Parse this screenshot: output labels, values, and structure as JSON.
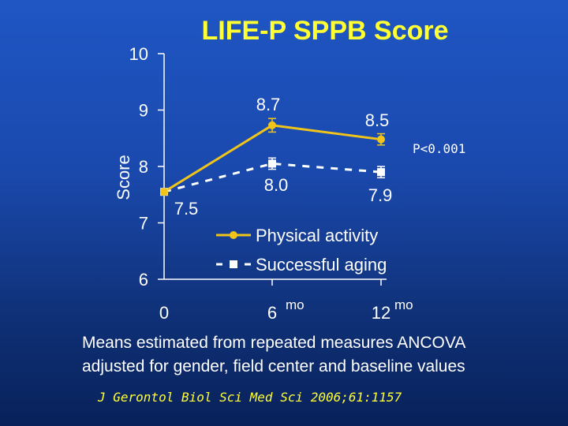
{
  "slide": {
    "title": "LIFE-P SPPB Score",
    "note_line1": "Means estimated from repeated measures ANCOVA",
    "note_line2": "adjusted for gender, field center and baseline values",
    "citation": "J Gerontol Biol Sci Med Sci 2006;61:1157"
  },
  "colors": {
    "background_top": "#1f56c4",
    "background_bottom": "#08215a",
    "title": "#ffff33",
    "physical_activity": "#f0c419",
    "successful_aging": "#ffffff",
    "axis": "#ffffff"
  },
  "chart_data": {
    "type": "line",
    "title": "LIFE-P SPPB Score",
    "xlabel": "",
    "ylabel": "Score",
    "x": [
      0,
      6,
      12
    ],
    "x_tick_labels": [
      "0",
      "6",
      "12"
    ],
    "x_unit_labels": [
      "",
      "mo",
      "mo"
    ],
    "y_ticks": [
      "6",
      "7",
      "8",
      "9",
      "10"
    ],
    "ylim": [
      6,
      10
    ],
    "annotation": "P<0.001",
    "legend_position": "center-right",
    "series": [
      {
        "name": "Physical activity",
        "values": [
          7.5,
          8.7,
          8.5
        ],
        "plotted_values": [
          7.55,
          8.73,
          8.48
        ],
        "error": [
          0.05,
          0.12,
          0.1
        ],
        "value_labels": [
          "7.5",
          "8.7",
          "8.5"
        ],
        "style": "solid",
        "marker": "circle"
      },
      {
        "name": "Successful aging",
        "values": [
          7.5,
          8.0,
          7.9
        ],
        "plotted_values": [
          7.55,
          8.05,
          7.9
        ],
        "error": [
          0.05,
          0.1,
          0.1
        ],
        "value_labels": [
          "",
          "8.0",
          "7.9"
        ],
        "style": "dashed",
        "marker": "square"
      }
    ]
  }
}
